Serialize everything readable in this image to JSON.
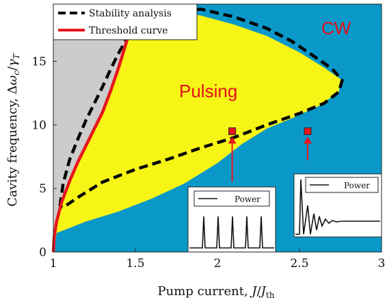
{
  "chart_data": {
    "type": "area",
    "xlabel": "Pump current, J/J_th",
    "ylabel": "Cavity frequency, Δω_c/γ_T",
    "xlim": [
      1,
      3
    ],
    "ylim": [
      0,
      19.5
    ],
    "xticks": [
      "1",
      "1.5",
      "2",
      "2.5",
      "3"
    ],
    "yticks": [
      "0",
      "5",
      "10",
      "15"
    ],
    "grid": false,
    "legend_position": "top-left",
    "legend": [
      {
        "label": "Stability analysis",
        "style": "dashed",
        "color": "#000000"
      },
      {
        "label": "Threshold curve",
        "style": "solid",
        "color": "#e8161b"
      }
    ],
    "regions": [
      {
        "label": "CW",
        "color": "#0a98c9"
      },
      {
        "label": "Pulsing",
        "color": "#f7f516"
      },
      {
        "label": "",
        "color": "#cccccc"
      }
    ],
    "series": [
      {
        "name": "Threshold curve",
        "x": [
          1.0,
          1.005,
          1.02,
          1.05,
          1.1,
          1.15,
          1.2,
          1.25,
          1.3,
          1.35,
          1.4,
          1.45
        ],
        "y": [
          0,
          1.2,
          2.4,
          3.9,
          5.6,
          7.1,
          8.4,
          9.7,
          11.0,
          12.7,
          14.6,
          16.7
        ]
      },
      {
        "name": "Stability analysis",
        "x": [
          1.04,
          1.06,
          1.1,
          1.15,
          1.2,
          1.25,
          1.3,
          1.35,
          1.4,
          1.45,
          1.55,
          1.7,
          1.9,
          2.1,
          2.3,
          2.45,
          2.6,
          2.7,
          2.76,
          2.74,
          2.65,
          2.5,
          2.3,
          2.1,
          1.9,
          1.7,
          1.5,
          1.3,
          1.15,
          1.06,
          1.04
        ],
        "y": [
          3.6,
          5.4,
          7.3,
          8.9,
          10.4,
          11.7,
          13.0,
          14.4,
          15.7,
          16.8,
          18.0,
          18.9,
          19.1,
          18.5,
          17.6,
          16.6,
          15.3,
          14.4,
          13.5,
          12.6,
          11.7,
          10.9,
          10.0,
          9.0,
          8.2,
          7.3,
          6.5,
          5.5,
          4.3,
          3.5,
          3.6
        ]
      }
    ],
    "markers": [
      {
        "x": 2.09,
        "y": 9.5
      },
      {
        "x": 2.55,
        "y": 9.5
      }
    ],
    "insets": [
      {
        "legend": "Power",
        "behavior": "periodic pulses"
      },
      {
        "legend": "Power",
        "behavior": "damped oscillation"
      }
    ]
  }
}
